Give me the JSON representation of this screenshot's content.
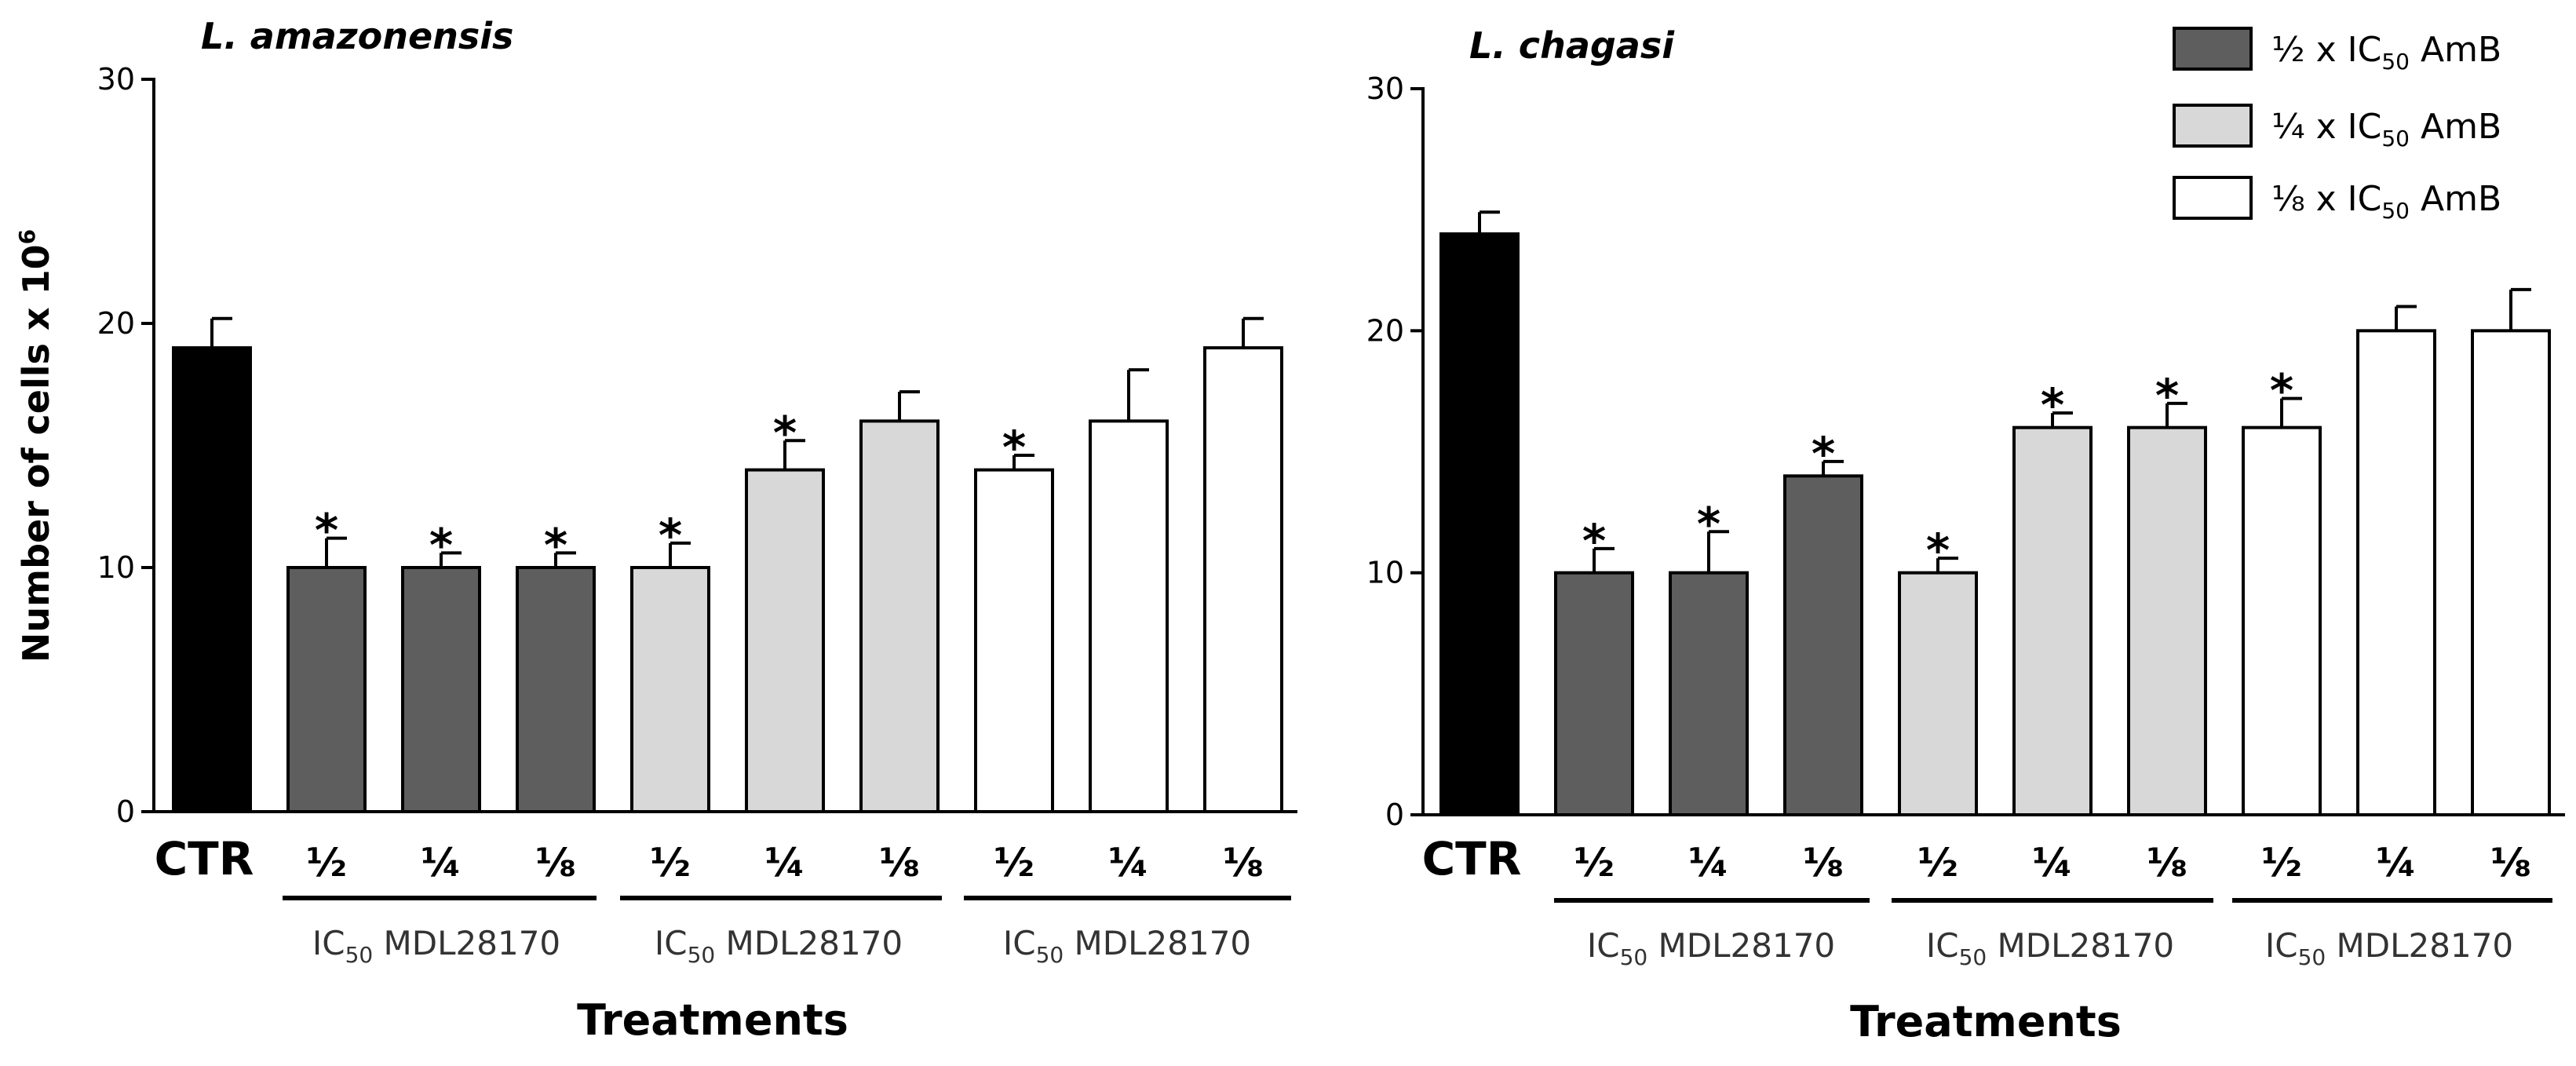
{
  "chart_data": [
    {
      "type": "bar",
      "title": "L. amazonensis",
      "ylabel": "Number of cells x 10",
      "ylabel_exponent": "6",
      "xlabel": "Treatments",
      "ylim": [
        0,
        30
      ],
      "yticks": [
        "0",
        "10",
        "20",
        "30"
      ],
      "categories": [
        "CTR",
        "½",
        "¼",
        "⅛",
        "½",
        "¼",
        "⅛",
        "½",
        "¼",
        "⅛"
      ],
      "series_index": [
        0,
        1,
        1,
        1,
        2,
        2,
        2,
        3,
        3,
        3
      ],
      "values": [
        19,
        10,
        10,
        10,
        10,
        14,
        16,
        14,
        16,
        19
      ],
      "errors": [
        1.2,
        1.2,
        0.6,
        0.6,
        1.0,
        1.2,
        1.2,
        0.6,
        2.1,
        1.2
      ],
      "significant": [
        false,
        true,
        true,
        true,
        true,
        true,
        false,
        true,
        false,
        false
      ],
      "star_symbol": "*",
      "group_label_prefix": "IC",
      "group_label_sub": "50",
      "group_label_suffix": " MDL28170",
      "groups": [
        {
          "start": 1,
          "end": 3
        },
        {
          "start": 4,
          "end": 6
        },
        {
          "start": 7,
          "end": 9
        }
      ]
    },
    {
      "type": "bar",
      "title": "L. chagasi",
      "ylabel": "",
      "xlabel": "Treatments",
      "ylim": [
        0,
        30
      ],
      "yticks": [
        "0",
        "10",
        "20",
        "30"
      ],
      "categories": [
        "CTR",
        "½",
        "¼",
        "⅛",
        "½",
        "¼",
        "⅛",
        "½",
        "¼",
        "⅛"
      ],
      "series_index": [
        0,
        1,
        1,
        1,
        2,
        2,
        2,
        3,
        3,
        3
      ],
      "values": [
        24,
        10,
        10,
        14,
        10,
        16,
        16,
        16,
        20,
        20
      ],
      "errors": [
        0.9,
        1.0,
        1.7,
        0.6,
        0.6,
        0.6,
        1.0,
        1.2,
        1.0,
        1.7
      ],
      "significant": [
        false,
        true,
        true,
        true,
        true,
        true,
        true,
        true,
        false,
        false
      ],
      "star_symbol": "*",
      "group_label_prefix": "IC",
      "group_label_sub": "50",
      "group_label_suffix": " MDL28170",
      "groups": [
        {
          "start": 1,
          "end": 3
        },
        {
          "start": 4,
          "end": 6
        },
        {
          "start": 7,
          "end": 9
        }
      ]
    }
  ],
  "colors": {
    "control": "#000000",
    "half": "#5e5e5e",
    "quarter": "#d8d8d8",
    "eighth": "#ffffff",
    "stroke": "#000000"
  },
  "legend": {
    "placement": "top-right",
    "items": [
      {
        "frac": "½",
        "mid": " x IC",
        "sub": "50",
        "suffix": " AmB",
        "color_key": "half"
      },
      {
        "frac": "¼",
        "mid": " x IC",
        "sub": "50",
        "suffix": " AmB",
        "color_key": "quarter"
      },
      {
        "frac": "⅛",
        "mid": " x IC",
        "sub": "50",
        "suffix": " AmB",
        "color_key": "eighth"
      }
    ]
  }
}
